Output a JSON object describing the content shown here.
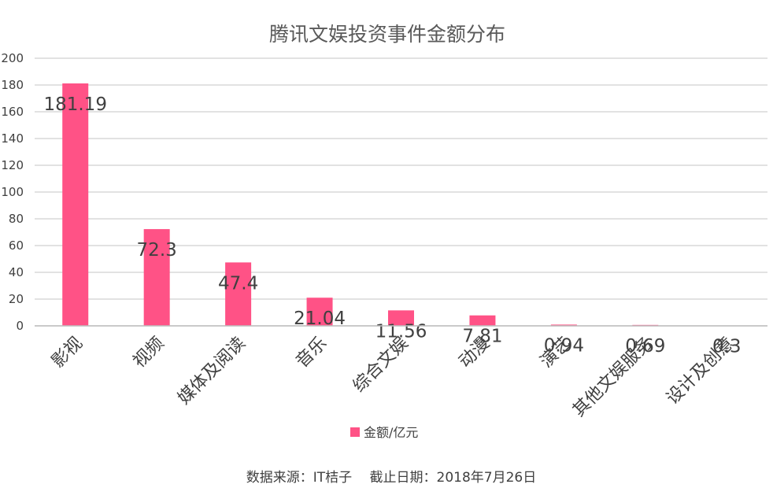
{
  "chart_data": {
    "type": "bar",
    "title": "腾讯文娱投资事件金额分布",
    "categories": [
      "影视",
      "视频",
      "媒体及阅读",
      "音乐",
      "综合文娱",
      "动漫",
      "演艺",
      "其他文娱服务",
      "设计及创意"
    ],
    "series": [
      {
        "name": "金额/亿元",
        "values": [
          181.19,
          72.3,
          47.4,
          21.04,
          11.56,
          7.81,
          0.94,
          0.69,
          0.3
        ],
        "labels": [
          "181.19",
          "72.3",
          "47.4",
          "21.04",
          "11.56",
          "7.81",
          "0.94",
          "0.69",
          "0.3"
        ],
        "color": "#FF5286"
      }
    ],
    "ylim": [
      0,
      200
    ],
    "yticks": [
      0,
      20,
      40,
      60,
      80,
      100,
      120,
      140,
      160,
      180,
      200
    ],
    "grid": true,
    "legend_position": "bottom",
    "source": "数据来源：IT桔子　 截止日期：2018年7月26日"
  }
}
